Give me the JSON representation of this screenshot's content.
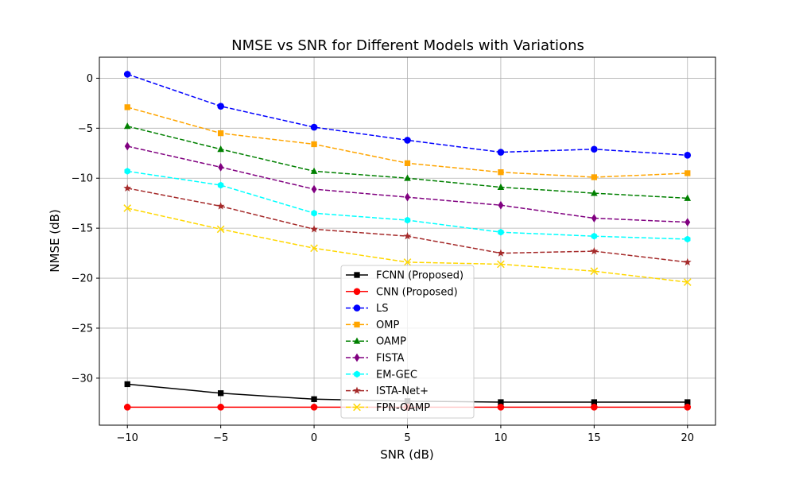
{
  "chart_data": {
    "type": "line",
    "title": "NMSE vs SNR for Different Models with Variations",
    "xlabel": "SNR (dB)",
    "ylabel": "NMSE (dB)",
    "x": [
      -10,
      -5,
      0,
      5,
      10,
      15,
      20
    ],
    "xlim": [
      -11.5,
      21.5
    ],
    "ylim": [
      -34.7,
      2.1
    ],
    "xticks": [
      -10,
      -5,
      0,
      5,
      10,
      15,
      20
    ],
    "yticks": [
      0,
      -5,
      -10,
      -15,
      -20,
      -25,
      -30
    ],
    "grid": true,
    "legend_position": "lower-center",
    "series": [
      {
        "name": "FCNN (Proposed)",
        "color": "#000000",
        "dashed": false,
        "marker": "square",
        "values": [
          -30.6,
          -31.5,
          -32.1,
          -32.3,
          -32.4,
          -32.4,
          -32.4
        ]
      },
      {
        "name": "CNN (Proposed)",
        "color": "#ff0000",
        "dashed": false,
        "marker": "circle",
        "values": [
          -32.9,
          -32.9,
          -32.9,
          -32.9,
          -32.9,
          -32.9,
          -32.9
        ]
      },
      {
        "name": "LS",
        "color": "#0000ff",
        "dashed": true,
        "marker": "circle",
        "values": [
          0.4,
          -2.8,
          -4.9,
          -6.2,
          -7.4,
          -7.1,
          -7.7
        ]
      },
      {
        "name": "OMP",
        "color": "#ffa500",
        "dashed": true,
        "marker": "square",
        "values": [
          -2.9,
          -5.5,
          -6.6,
          -8.5,
          -9.4,
          -9.9,
          -9.5
        ]
      },
      {
        "name": "OAMP",
        "color": "#008000",
        "dashed": true,
        "marker": "triangle",
        "values": [
          -4.8,
          -7.1,
          -9.3,
          -10.0,
          -10.9,
          -11.5,
          -12.0
        ]
      },
      {
        "name": "FISTA",
        "color": "#800080",
        "dashed": true,
        "marker": "diamond",
        "values": [
          -6.8,
          -8.9,
          -11.1,
          -11.9,
          -12.7,
          -14.0,
          -14.4
        ]
      },
      {
        "name": "EM-GEC",
        "color": "#00ffff",
        "dashed": true,
        "marker": "hexagon",
        "values": [
          -9.3,
          -10.7,
          -13.5,
          -14.2,
          -15.4,
          -15.8,
          -16.1
        ]
      },
      {
        "name": "ISTA-Net+",
        "color": "#a52a2a",
        "dashed": true,
        "marker": "star",
        "values": [
          -11.0,
          -12.8,
          -15.1,
          -15.8,
          -17.5,
          -17.3,
          -18.4
        ]
      },
      {
        "name": "FPN-OAMP",
        "color": "#ffd700",
        "dashed": true,
        "marker": "x",
        "values": [
          -13.0,
          -15.1,
          -17.0,
          -18.4,
          -18.6,
          -19.3,
          -20.4
        ]
      }
    ]
  }
}
